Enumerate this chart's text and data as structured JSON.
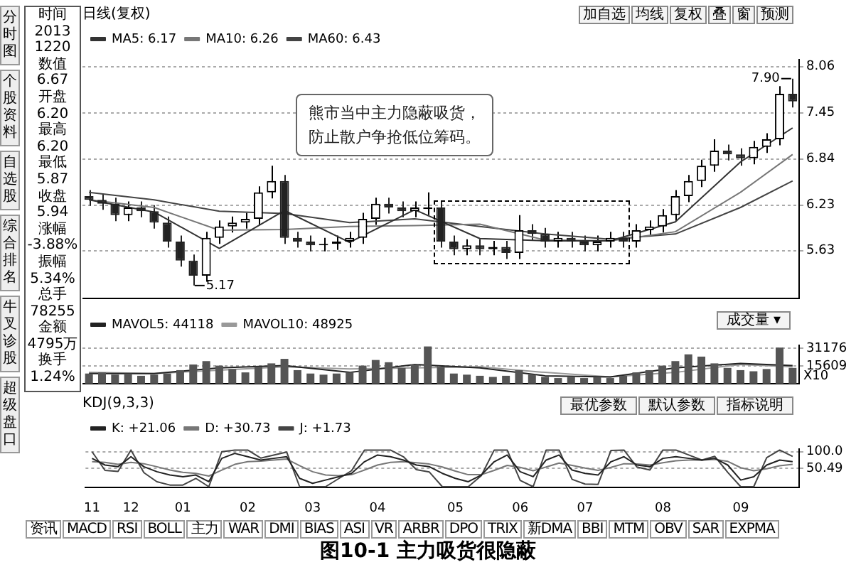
{
  "chart_data": [
    {
      "type": "candlestick",
      "title": "日线(复权)",
      "categories": [
        "11",
        null,
        null,
        "12",
        null,
        null,
        null,
        "01",
        null,
        null,
        null,
        null,
        "02",
        null,
        null,
        null,
        null,
        "03",
        null,
        null,
        null,
        null,
        "04",
        null,
        null,
        null,
        null,
        null,
        "05",
        null,
        null,
        null,
        null,
        "06",
        null,
        null,
        null,
        null,
        "07",
        null,
        null,
        null,
        null,
        null,
        "08",
        null,
        null,
        null,
        null,
        null,
        "09",
        null,
        null,
        null,
        null
      ],
      "series": [
        {
          "type": "candlestick",
          "colors": [
            "#222222",
            "#222222",
            "#222222",
            "#000000",
            "#222222",
            "#222222",
            "#222222",
            "#222222",
            "#222222",
            "#000000",
            "#000000",
            "#000000",
            "#000000",
            "#000000",
            "#000000",
            "#222222",
            "#222222",
            "#222222",
            "#000000",
            "#000000",
            "#000000",
            "#000000",
            "#000000",
            "#222222",
            "#222222",
            "#000000",
            "#000000",
            "#222222",
            "#222222",
            "#000000",
            "#222222",
            "#000000",
            "#222222",
            "#000000",
            "#222222",
            "#222222",
            "#000000",
            "#222222",
            "#222222",
            "#000000",
            "#000000",
            "#222222",
            "#000000",
            "#000000",
            "#000000",
            "#000000",
            "#000000",
            "#000000",
            "#000000",
            "#222222",
            "#222222",
            "#000000",
            "#000000",
            "#000000",
            "#222222"
          ],
          "ohlc": [
            [
              6.35,
              6.43,
              6.22,
              6.3
            ],
            [
              6.3,
              6.38,
              6.17,
              6.25
            ],
            [
              6.25,
              6.33,
              6.02,
              6.1
            ],
            [
              6.1,
              6.28,
              6.02,
              6.2
            ],
            [
              6.2,
              6.28,
              6.07,
              6.15
            ],
            [
              6.15,
              6.23,
              5.92,
              6.0
            ],
            [
              6.0,
              6.08,
              5.67,
              5.75
            ],
            [
              5.75,
              5.83,
              5.42,
              5.5
            ],
            [
              5.5,
              5.58,
              5.17,
              5.3
            ],
            [
              5.3,
              5.88,
              5.22,
              5.8
            ],
            [
              5.8,
              6.03,
              5.72,
              5.95
            ],
            [
              5.95,
              6.08,
              5.87,
              6.0
            ],
            [
              6.0,
              6.13,
              5.92,
              6.05
            ],
            [
              6.05,
              6.48,
              5.97,
              6.4
            ],
            [
              6.4,
              6.75,
              6.32,
              6.55
            ],
            [
              6.55,
              6.63,
              5.72,
              5.8
            ],
            [
              5.8,
              5.88,
              5.67,
              5.75
            ],
            [
              5.75,
              5.83,
              5.62,
              5.7
            ],
            [
              5.7,
              5.8,
              5.62,
              5.72
            ],
            [
              5.72,
              5.83,
              5.64,
              5.75
            ],
            [
              5.75,
              5.88,
              5.67,
              5.8
            ],
            [
              5.8,
              6.13,
              5.72,
              6.05
            ],
            [
              6.05,
              6.33,
              5.97,
              6.25
            ],
            [
              6.25,
              6.33,
              6.12,
              6.2
            ],
            [
              6.2,
              6.28,
              6.07,
              6.15
            ],
            [
              6.15,
              6.28,
              6.07,
              6.2
            ],
            [
              6.18,
              6.4,
              6.1,
              6.2
            ],
            [
              6.2,
              6.28,
              5.67,
              5.75
            ],
            [
              5.75,
              5.83,
              5.57,
              5.65
            ],
            [
              5.65,
              5.78,
              5.57,
              5.7
            ],
            [
              5.7,
              5.78,
              5.57,
              5.65
            ],
            [
              5.65,
              5.76,
              5.57,
              5.68
            ],
            [
              5.68,
              5.76,
              5.52,
              5.6
            ],
            [
              5.6,
              6.1,
              5.52,
              5.9
            ],
            [
              5.9,
              5.98,
              5.77,
              5.85
            ],
            [
              5.85,
              5.93,
              5.67,
              5.75
            ],
            [
              5.75,
              5.88,
              5.67,
              5.8
            ],
            [
              5.8,
              5.88,
              5.67,
              5.75
            ],
            [
              5.75,
              5.83,
              5.62,
              5.7
            ],
            [
              5.7,
              5.83,
              5.62,
              5.75
            ],
            [
              5.75,
              5.88,
              5.67,
              5.8
            ],
            [
              5.8,
              5.88,
              5.67,
              5.75
            ],
            [
              5.75,
              5.98,
              5.67,
              5.9
            ],
            [
              5.9,
              6.03,
              5.82,
              5.95
            ],
            [
              5.95,
              6.18,
              5.87,
              6.1
            ],
            [
              6.1,
              6.43,
              6.02,
              6.35
            ],
            [
              6.35,
              6.63,
              6.27,
              6.55
            ],
            [
              6.55,
              6.83,
              6.47,
              6.75
            ],
            [
              6.75,
              7.1,
              6.67,
              6.95
            ],
            [
              6.95,
              7.03,
              6.82,
              6.9
            ],
            [
              6.9,
              6.98,
              6.75,
              6.85
            ],
            [
              6.85,
              7.08,
              6.77,
              7.0
            ],
            [
              7.0,
              7.18,
              6.92,
              7.1
            ],
            [
              7.1,
              7.8,
              7.02,
              7.7
            ],
            [
              7.7,
              7.9,
              7.52,
              7.6
            ]
          ]
        },
        {
          "type": "line",
          "name": "MA5: 6.17",
          "color": "#333333",
          "values": [
            6.3,
            null,
            null,
            null,
            null,
            6.14,
            null,
            null,
            null,
            null,
            5.66,
            null,
            null,
            null,
            null,
            6.16,
            null,
            null,
            null,
            null,
            5.74,
            null,
            null,
            null,
            null,
            6.17,
            null,
            null,
            null,
            null,
            5.79,
            null,
            null,
            null,
            null,
            5.76,
            null,
            null,
            null,
            null,
            5.76,
            null,
            null,
            null,
            null,
            6.01,
            null,
            null,
            null,
            null,
            6.8,
            null,
            null,
            null,
            7.25
          ]
        },
        {
          "type": "line",
          "name": "MA10: 6.26",
          "color": "#777777",
          "values": [
            6.3,
            null,
            null,
            null,
            null,
            6.2,
            null,
            null,
            null,
            null,
            5.9,
            null,
            null,
            null,
            null,
            5.91,
            null,
            null,
            null,
            null,
            5.95,
            null,
            null,
            null,
            null,
            5.96,
            null,
            null,
            null,
            null,
            5.98,
            null,
            null,
            null,
            null,
            5.77,
            null,
            null,
            null,
            null,
            5.76,
            null,
            null,
            null,
            null,
            5.88,
            null,
            null,
            null,
            null,
            6.4,
            null,
            null,
            null,
            6.9
          ]
        },
        {
          "type": "line",
          "name": "MA60: 6.43",
          "color": "#444444",
          "values": [
            6.4,
            null,
            null,
            null,
            null,
            6.3,
            null,
            null,
            null,
            null,
            6.15,
            null,
            null,
            null,
            null,
            6.12,
            null,
            null,
            null,
            null,
            6.0,
            null,
            null,
            null,
            null,
            6.05,
            null,
            null,
            null,
            null,
            5.95,
            null,
            null,
            null,
            null,
            5.85,
            null,
            null,
            null,
            null,
            5.78,
            null,
            null,
            null,
            null,
            5.85,
            null,
            null,
            null,
            null,
            6.2,
            null,
            null,
            null,
            6.55
          ]
        }
      ],
      "ylim": [
        5.0,
        8.15
      ],
      "yticks": [
        8.06,
        7.45,
        6.84,
        6.23,
        5.63
      ],
      "grid": "y",
      "legend": "top left",
      "marker": "none",
      "tick_labels": "y",
      "annotations": [
        "5.17",
        "7.90",
        "熊市当中主力隐蔽吸货，",
        "防止散户争抢低位筹码。"
      ]
    },
    {
      "type": "bar",
      "categories": [
        "11",
        null,
        null,
        "12",
        null,
        null,
        null,
        "01",
        null,
        null,
        null,
        null,
        "02",
        null,
        null,
        null,
        null,
        "03",
        null,
        null,
        null,
        null,
        "04",
        null,
        null,
        null,
        null,
        null,
        "05",
        null,
        null,
        null,
        null,
        "06",
        null,
        null,
        null,
        null,
        "07",
        null,
        null,
        null,
        null,
        null,
        "08",
        null,
        null,
        null,
        null,
        null,
        "09",
        null,
        null,
        null,
        null
      ],
      "series": [
        {
          "type": "bar",
          "color": "#555555",
          "values": [
            9000,
            10000,
            8000,
            9000,
            7000,
            8000,
            9000,
            12000,
            17000,
            20000,
            16000,
            13000,
            10000,
            15000,
            18000,
            22000,
            12000,
            9000,
            8000,
            9000,
            10000,
            16000,
            21000,
            19000,
            14000,
            17000,
            33000,
            15000,
            9000,
            8000,
            7000,
            6000,
            7000,
            12000,
            8000,
            6000,
            5000,
            6000,
            5000,
            6000,
            5000,
            7000,
            10000,
            12000,
            16000,
            20000,
            26000,
            24000,
            18000,
            14000,
            12000,
            11000,
            13000,
            32000,
            14000
          ]
        },
        {
          "type": "line",
          "name": "MAVOL5: 44118",
          "color": "#222222",
          "values": [
            9000,
            null,
            null,
            null,
            null,
            9000,
            null,
            null,
            null,
            null,
            14000,
            null,
            null,
            null,
            null,
            16000,
            null,
            null,
            null,
            null,
            10000,
            null,
            null,
            null,
            null,
            17000,
            null,
            null,
            null,
            null,
            14000,
            null,
            null,
            null,
            null,
            7000,
            null,
            null,
            null,
            null,
            6000,
            null,
            null,
            null,
            null,
            14000,
            null,
            null,
            null,
            null,
            18000,
            null,
            null,
            null,
            16000
          ]
        },
        {
          "type": "line",
          "name": "MAVOL10: 48925",
          "color": "#999999",
          "values": [
            10000,
            null,
            null,
            null,
            null,
            9000,
            null,
            null,
            null,
            null,
            12000,
            null,
            null,
            null,
            null,
            15000,
            null,
            null,
            null,
            null,
            13000,
            null,
            null,
            null,
            null,
            14000,
            null,
            null,
            null,
            null,
            15000,
            null,
            null,
            null,
            null,
            10000,
            null,
            null,
            null,
            null,
            6000,
            null,
            null,
            null,
            null,
            10000,
            null,
            null,
            null,
            null,
            17000,
            null,
            null,
            null,
            15000
          ]
        }
      ],
      "ylim": [
        0,
        34000
      ],
      "yticks": [
        31176,
        15609
      ],
      "grid": "y",
      "legend": "top left",
      "marker": "none",
      "tick_labels": "y",
      "annotations": [
        "X10"
      ]
    },
    {
      "type": "line",
      "title": "KDJ(9,3,3)",
      "categories": [
        "11",
        null,
        null,
        "12",
        null,
        null,
        null,
        "01",
        null,
        null,
        null,
        null,
        "02",
        null,
        null,
        null,
        null,
        "03",
        null,
        null,
        null,
        null,
        "04",
        null,
        null,
        null,
        null,
        null,
        "05",
        null,
        null,
        null,
        null,
        "06",
        null,
        null,
        null,
        null,
        "07",
        null,
        null,
        null,
        null,
        null,
        "08",
        null,
        null,
        null,
        null,
        null,
        "09",
        null,
        null,
        null,
        null
      ],
      "series": [
        {
          "name": "K: +21.06",
          "color": "#222222",
          "values": [
            80,
            60,
            55,
            85,
            55,
            40,
            30,
            25,
            30,
            10,
            80,
            95,
            85,
            75,
            80,
            85,
            20,
            5,
            15,
            25,
            35,
            70,
            90,
            85,
            75,
            60,
            55,
            35,
            20,
            10,
            30,
            70,
            90,
            40,
            25,
            75,
            90,
            45,
            35,
            30,
            70,
            85,
            60,
            55,
            80,
            85,
            80,
            75,
            80,
            60,
            15,
            25,
            60,
            75,
            70
          ]
        },
        {
          "name": "D: +30.73",
          "color": "#777777",
          "values": [
            70,
            68,
            62,
            68,
            64,
            55,
            45,
            38,
            35,
            27,
            45,
            62,
            70,
            72,
            75,
            78,
            58,
            40,
            30,
            28,
            31,
            45,
            60,
            68,
            70,
            67,
            63,
            54,
            42,
            31,
            31,
            44,
            59,
            53,
            43,
            54,
            66,
            59,
            51,
            44,
            53,
            64,
            63,
            60,
            67,
            73,
            75,
            75,
            77,
            71,
            52,
            43,
            49,
            58,
            62
          ]
        },
        {
          "name": "J: +1.73",
          "color": "#444444",
          "values": [
            100,
            44,
            41,
            105,
            37,
            10,
            0,
            0,
            20,
            -5,
            100,
            105,
            105,
            81,
            90,
            99,
            -5,
            -5,
            -5,
            19,
            43,
            105,
            105,
            105,
            85,
            46,
            39,
            -5,
            -5,
            -5,
            28,
            105,
            105,
            14,
            -5,
            105,
            105,
            17,
            3,
            2,
            104,
            105,
            54,
            45,
            105,
            105,
            90,
            75,
            86,
            38,
            -5,
            -5,
            82,
            105,
            86
          ]
        }
      ],
      "ylim": [
        -8,
        108
      ],
      "yticks": [
        {
          "value": 100,
          "label": "100.0"
        },
        50.49
      ],
      "grid": "y",
      "legend": "top left",
      "marker": "none"
    },
    {
      "type": "other",
      "annotations": [
        "分时图",
        "个股资料",
        "自选股",
        "综合排名",
        "牛叉诊股",
        "超级盘口"
      ]
    },
    {
      "type": "other",
      "annotations": [
        "时间",
        "2013",
        "1220",
        "数值",
        "6.67",
        "开盘",
        "6.20",
        "最高",
        "6.20",
        "最低",
        "5.87",
        "收盘",
        "5.94",
        "涨幅",
        "-3.88%",
        "振幅",
        "5.34%",
        "总手",
        "78255",
        "金额",
        "4795万",
        "换手",
        "1.24%"
      ]
    },
    {
      "type": "other",
      "annotations": [
        "加自选",
        "均线",
        "复权",
        "叠",
        "窗",
        "预测"
      ]
    },
    {
      "type": "other",
      "annotations": [
        "成交量 ▾"
      ]
    },
    {
      "type": "other",
      "annotations": [
        "最优参数",
        "默认参数",
        "指标说明"
      ]
    },
    {
      "type": "other",
      "annotations": [
        "资讯",
        "MACD",
        "RSI",
        "BOLL",
        "主力",
        "WAR",
        "DMI",
        "BIAS",
        "ASI",
        "VR",
        "ARBR",
        "DPO",
        "TRIX",
        "新DMA",
        "BBI",
        "MTM",
        "OBV",
        "SAR",
        "EXPMA"
      ]
    },
    {
      "type": "other",
      "title": "图10-1 主力吸货很隐蔽"
    }
  ]
}
